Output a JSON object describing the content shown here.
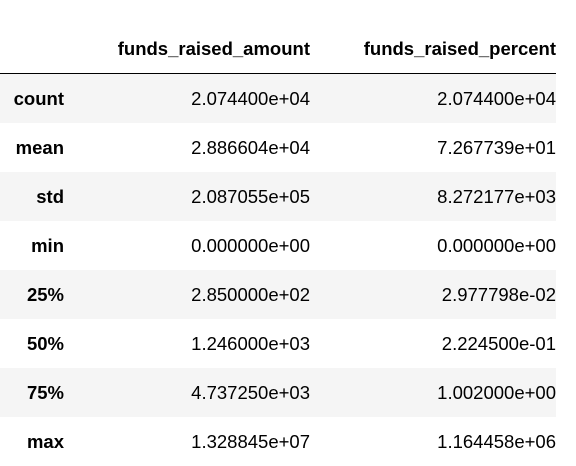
{
  "table": {
    "columns": [
      "funds_raised_amount",
      "funds_raised_percent"
    ],
    "rows": [
      {
        "label": "count",
        "funds_raised_amount": "2.074400e+04",
        "funds_raised_percent": "2.074400e+04"
      },
      {
        "label": "mean",
        "funds_raised_amount": "2.886604e+04",
        "funds_raised_percent": "7.267739e+01"
      },
      {
        "label": "std",
        "funds_raised_amount": "2.087055e+05",
        "funds_raised_percent": "8.272177e+03"
      },
      {
        "label": "min",
        "funds_raised_amount": "0.000000e+00",
        "funds_raised_percent": "0.000000e+00"
      },
      {
        "label": "25%",
        "funds_raised_amount": "2.850000e+02",
        "funds_raised_percent": "2.977798e-02"
      },
      {
        "label": "50%",
        "funds_raised_amount": "1.246000e+03",
        "funds_raised_percent": "2.224500e-01"
      },
      {
        "label": "75%",
        "funds_raised_amount": "4.737250e+03",
        "funds_raised_percent": "1.002000e+00"
      },
      {
        "label": "max",
        "funds_raised_amount": "1.328845e+07",
        "funds_raised_percent": "1.164458e+06"
      }
    ]
  },
  "colors": {
    "stripe": "#f5f5f5",
    "text": "#000000",
    "background": "#ffffff"
  }
}
